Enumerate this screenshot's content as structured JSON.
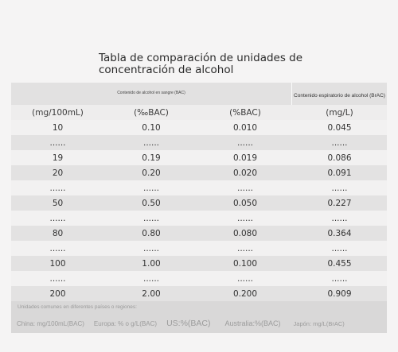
{
  "title": "Tabla de comparación de unidades de concentración de alcohol",
  "header": {
    "left": "Contenido de alcohol en sangre (BAC)",
    "right": "Contenido espiratorio de alcohol (BrAC)"
  },
  "units": [
    "(mg/100mL)",
    "(‰BAC)",
    "(%BAC)",
    "(mg/L)"
  ],
  "rows": [
    [
      "10",
      "0.10",
      "0.010",
      "0.045"
    ],
    [
      "......",
      "......",
      "......",
      "......"
    ],
    [
      "19",
      "0.19",
      "0.019",
      "0.086"
    ],
    [
      "20",
      "0.20",
      "0.020",
      "0.091"
    ],
    [
      "......",
      "......",
      "......",
      "......"
    ],
    [
      "50",
      "0.50",
      "0.050",
      "0.227"
    ],
    [
      "......",
      "......",
      "......",
      "......"
    ],
    [
      "80",
      "0.80",
      "0.080",
      "0.364"
    ],
    [
      "......",
      "......",
      "......",
      "......"
    ],
    [
      "100",
      "1.00",
      "0.100",
      "0.455"
    ],
    [
      "......",
      "......",
      "......",
      "......"
    ],
    [
      "200",
      "2.00",
      "0.200",
      "0.909"
    ]
  ],
  "footer": {
    "label": "Unidades comunes en diferentes países o regiones:",
    "regions": [
      "China: mg/100mL(BAC)",
      "Europa: % o g/L(BAC)",
      "US:%(BAC)",
      "Australia:%(BAC)",
      "Japón: mg/L(BrAC)"
    ]
  }
}
